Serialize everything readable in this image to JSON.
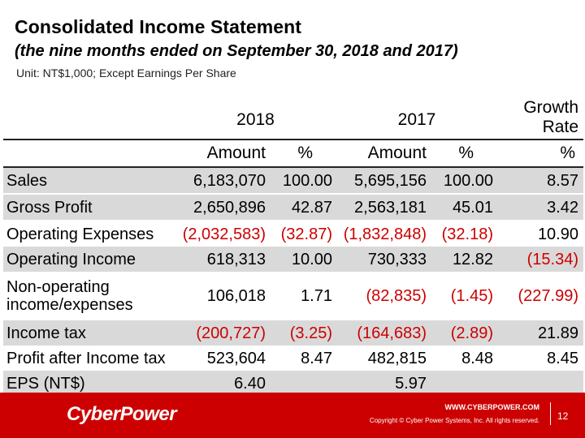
{
  "title": "Consolidated Income Statement",
  "subtitle": "(the nine months ended on September 30, 2018 and 2017)",
  "unit": "Unit: NT$1,000; Except Earnings Per Share",
  "headers": {
    "year_2018": "2018",
    "year_2017": "2017",
    "growth_line1": "Growth",
    "growth_line2": "Rate",
    "amount": "Amount",
    "pct": "%"
  },
  "rows": [
    {
      "label": "Sales",
      "a18": "6,183,070",
      "p18": "100.00",
      "a17": "5,695,156",
      "p17": "100.00",
      "gr": "8.57"
    },
    {
      "label": "Gross Profit",
      "a18": "2,650,896",
      "p18": "42.87",
      "a17": "2,563,181",
      "p17": "45.01",
      "gr": "3.42"
    },
    {
      "label": "Operating Expenses",
      "a18": "(2,032,583)",
      "p18": "(32.87)",
      "a17": "(1,832,848)",
      "p17": "(32.18)",
      "gr": "10.90"
    },
    {
      "label": "Operating Income",
      "a18": "618,313",
      "p18": "10.00",
      "a17": "730,333",
      "p17": "12.82",
      "gr": "(15.34)"
    },
    {
      "label_line1": "Non-operating",
      "label_line2": "income/expenses",
      "a18": "106,018",
      "p18": "1.71",
      "a17": "(82,835)",
      "p17": "(1.45)",
      "gr": "(227.99)"
    },
    {
      "label": "Income tax",
      "a18": "(200,727)",
      "p18": "(3.25)",
      "a17": "(164,683)",
      "p17": "(2.89)",
      "gr": "21.89"
    },
    {
      "label": "Profit after Income tax",
      "a18": "523,604",
      "p18": "8.47",
      "a17": "482,815",
      "p17": "8.48",
      "gr": "8.45"
    },
    {
      "label": "EPS (NT$)",
      "a18": "6.40",
      "a17": "5.97"
    }
  ],
  "footer": {
    "logo": "CyberPower",
    "url": "WWW.CYBERPOWER.COM",
    "copyright": "Copyright © Cyber Power Systems, Inc. All rights reserved.",
    "page": "12"
  },
  "colors": {
    "brand_red": "#cc0000",
    "negative": "#cc0000",
    "row_shade": "#d9d9d9"
  }
}
